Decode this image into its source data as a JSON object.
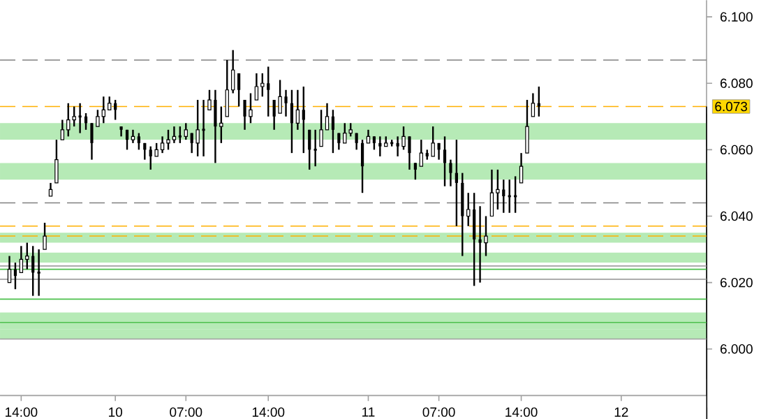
{
  "chart_data": {
    "type": "candlestick",
    "color": "#000000",
    "categories": [
      null,
      null,
      "14:00",
      null,
      null,
      null,
      null,
      null,
      null,
      null,
      null,
      null,
      null,
      null,
      null,
      null,
      null,
      null,
      "10",
      null,
      null,
      null,
      null,
      null,
      null,
      null,
      null,
      null,
      null,
      null,
      "07:00",
      null,
      null,
      null,
      null,
      null,
      null,
      null,
      null,
      null,
      null,
      null,
      null,
      null,
      "14:00",
      null,
      null,
      null,
      null,
      null,
      null,
      null,
      null,
      null,
      null,
      null,
      null,
      null,
      null,
      null,
      null,
      "11",
      null,
      null,
      null,
      null,
      null,
      null,
      null,
      null,
      null,
      null,
      null,
      "07:00",
      null,
      null,
      null,
      null,
      null,
      null,
      null,
      null,
      null,
      null,
      null,
      null,
      null,
      "14:00",
      null,
      null,
      null,
      null,
      null,
      null,
      null,
      null,
      null,
      null,
      null,
      null,
      null,
      null,
      null,
      null,
      "12",
      null,
      null,
      null,
      null,
      null,
      null,
      null,
      null,
      null,
      null,
      null,
      null,
      null,
      null
    ],
    "ohlc": [
      [
        6.02,
        6.028,
        6.02,
        6.024
      ],
      [
        6.024,
        6.026,
        6.018,
        6.022
      ],
      [
        6.023,
        6.031,
        6.023,
        6.027
      ],
      [
        6.027,
        6.032,
        6.024,
        6.028
      ],
      [
        6.028,
        6.031,
        6.016,
        6.023
      ],
      [
        6.023,
        6.03,
        6.016,
        6.023
      ],
      [
        6.03,
        6.038,
        6.03,
        6.034
      ],
      [
        6.046,
        6.05,
        6.046,
        6.048
      ],
      [
        6.05,
        6.063,
        6.05,
        6.057
      ],
      [
        6.063,
        6.069,
        6.063,
        6.066
      ],
      [
        6.066,
        6.074,
        6.064,
        6.069
      ],
      [
        6.069,
        6.073,
        6.067,
        6.07
      ],
      [
        6.07,
        6.074,
        6.065,
        6.07
      ],
      [
        6.07,
        6.071,
        6.066,
        6.068
      ],
      [
        6.068,
        6.068,
        6.057,
        6.062
      ],
      [
        6.067,
        6.072,
        6.067,
        6.07
      ],
      [
        6.07,
        6.076,
        6.068,
        6.072
      ],
      [
        6.072,
        6.076,
        6.072,
        6.074
      ],
      [
        6.074,
        6.075,
        6.069,
        6.072
      ],
      [
        6.067,
        6.067,
        6.064,
        6.066
      ],
      [
        6.066,
        6.066,
        6.06,
        6.063
      ],
      [
        6.063,
        6.066,
        6.062,
        6.064
      ],
      [
        6.064,
        6.065,
        6.06,
        6.062
      ],
      [
        6.062,
        6.062,
        6.057,
        6.06
      ],
      [
        6.06,
        6.061,
        6.054,
        6.058
      ],
      [
        6.058,
        6.062,
        6.058,
        6.06
      ],
      [
        6.06,
        6.064,
        6.059,
        6.062
      ],
      [
        6.062,
        6.066,
        6.06,
        6.063
      ],
      [
        6.063,
        6.067,
        6.062,
        6.064
      ],
      [
        6.064,
        6.067,
        6.062,
        6.064
      ],
      [
        6.064,
        6.068,
        6.063,
        6.066
      ],
      [
        6.065,
        6.065,
        6.059,
        6.062
      ],
      [
        6.062,
        6.075,
        6.058,
        6.066
      ],
      [
        6.066,
        6.075,
        6.058,
        6.066
      ],
      [
        6.072,
        6.078,
        6.072,
        6.075
      ],
      [
        6.075,
        6.078,
        6.056,
        6.067
      ],
      [
        6.067,
        6.073,
        6.062,
        6.068
      ],
      [
        6.07,
        6.087,
        6.07,
        6.078
      ],
      [
        6.078,
        6.09,
        6.077,
        6.084
      ],
      [
        6.083,
        6.083,
        6.073,
        6.078
      ],
      [
        6.075,
        6.075,
        6.066,
        6.07
      ],
      [
        6.07,
        6.077,
        6.068,
        6.072
      ],
      [
        6.075,
        6.083,
        6.075,
        6.079
      ],
      [
        6.079,
        6.083,
        6.076,
        6.08
      ],
      [
        6.08,
        6.085,
        6.07,
        6.078
      ],
      [
        6.075,
        6.075,
        6.066,
        6.07
      ],
      [
        6.071,
        6.081,
        6.071,
        6.076
      ],
      [
        6.076,
        6.078,
        6.07,
        6.074
      ],
      [
        6.074,
        6.078,
        6.059,
        6.068
      ],
      [
        6.068,
        6.078,
        6.066,
        6.072
      ],
      [
        6.072,
        6.079,
        6.059,
        6.069
      ],
      [
        6.066,
        6.066,
        6.054,
        6.06
      ],
      [
        6.06,
        6.066,
        6.055,
        6.06
      ],
      [
        6.061,
        6.072,
        6.061,
        6.066
      ],
      [
        6.066,
        6.074,
        6.066,
        6.07
      ],
      [
        6.07,
        6.072,
        6.059,
        6.066
      ],
      [
        6.065,
        6.065,
        6.06,
        6.062
      ],
      [
        6.062,
        6.068,
        6.062,
        6.065
      ],
      [
        6.065,
        6.068,
        6.064,
        6.066
      ],
      [
        6.065,
        6.065,
        6.06,
        6.062
      ],
      [
        6.062,
        6.063,
        6.047,
        6.055
      ],
      [
        6.062,
        6.066,
        6.062,
        6.064
      ],
      [
        6.064,
        6.064,
        6.06,
        6.062
      ],
      [
        6.062,
        6.064,
        6.058,
        6.061
      ],
      [
        6.061,
        6.064,
        6.061,
        6.062
      ],
      [
        6.062,
        6.063,
        6.061,
        6.062
      ],
      [
        6.062,
        6.064,
        6.058,
        6.061
      ],
      [
        6.061,
        6.067,
        6.06,
        6.064
      ],
      [
        6.064,
        6.064,
        6.054,
        6.059
      ],
      [
        6.056,
        6.056,
        6.051,
        6.054
      ],
      [
        6.055,
        6.063,
        6.055,
        6.059
      ],
      [
        6.059,
        6.06,
        6.057,
        6.058
      ],
      [
        6.058,
        6.067,
        6.058,
        6.062
      ],
      [
        6.062,
        6.062,
        6.057,
        6.06
      ],
      [
        6.06,
        6.064,
        6.049,
        6.056
      ],
      [
        6.056,
        6.057,
        6.049,
        6.053
      ],
      [
        6.053,
        6.063,
        6.037,
        6.05
      ],
      [
        6.05,
        6.053,
        6.028,
        6.04
      ],
      [
        6.04,
        6.047,
        6.037,
        6.042
      ],
      [
        6.042,
        6.047,
        6.019,
        6.033
      ],
      [
        6.033,
        6.043,
        6.02,
        6.032
      ],
      [
        6.032,
        6.04,
        6.028,
        6.034
      ],
      [
        6.04,
        6.054,
        6.04,
        6.047
      ],
      [
        6.047,
        6.054,
        6.042,
        6.048
      ],
      [
        6.048,
        6.051,
        6.041,
        6.046
      ],
      [
        6.046,
        6.051,
        6.041,
        6.046
      ],
      [
        6.046,
        6.052,
        6.041,
        6.046
      ],
      [
        6.05,
        6.059,
        6.05,
        6.055
      ],
      [
        6.059,
        6.075,
        6.059,
        6.067
      ],
      [
        6.07,
        6.077,
        6.07,
        6.074
      ],
      [
        6.074,
        6.079,
        6.07,
        6.073
      ],
      null,
      null,
      null,
      null,
      null,
      null,
      null,
      null,
      null,
      null,
      null,
      null,
      null,
      null,
      null,
      null,
      null,
      null,
      null,
      null,
      null,
      null,
      null,
      null,
      null,
      null,
      null,
      null
    ],
    "ylim": [
      5.986,
      6.105
    ],
    "yticks": [
      {
        "value": 6.0,
        "label": "6.000"
      },
      {
        "value": 6.02,
        "label": "6.020"
      },
      {
        "value": 6.04,
        "label": "6.040"
      },
      {
        "value": 6.06,
        "label": "6.060"
      },
      {
        "value": 6.08,
        "label": "6.080"
      },
      {
        "value": 6.1,
        "label": "6.100"
      }
    ],
    "bands": [
      {
        "axis": "y",
        "from": 6.051,
        "to": 6.056,
        "color": "#b6eab6"
      },
      {
        "axis": "y",
        "from": 6.032,
        "to": 6.035,
        "color": "#b6eab6"
      },
      {
        "axis": "y",
        "from": 6.063,
        "to": 6.068,
        "color": "#b6eab6"
      },
      {
        "axis": "y",
        "from": 6.026,
        "to": 6.029,
        "color": "#b6eab6"
      },
      {
        "axis": "y",
        "from": 6.003,
        "to": 6.006,
        "color": "#b6eab6"
      },
      {
        "axis": "y",
        "from": 6.006,
        "to": 6.011,
        "color": "#b6eab6"
      }
    ],
    "ref_lines": [
      {
        "axis": "y",
        "value": 6.087,
        "color": "#808080",
        "line_style": "dashed"
      },
      {
        "axis": "y",
        "value": 6.044,
        "color": "#808080",
        "line_style": "dashed"
      },
      {
        "axis": "y",
        "value": 6.073,
        "color": "#ffb000",
        "line_style": "dashed",
        "label": "6.073"
      },
      {
        "axis": "y",
        "value": 6.037,
        "color": "#ffb000",
        "line_style": "dashed"
      },
      {
        "axis": "y",
        "value": 6.034,
        "color": "#ffb000",
        "line_style": "dashed"
      },
      {
        "axis": "y",
        "value": 6.025,
        "color": "#a0a0a0",
        "line_style": "solid"
      },
      {
        "axis": "y",
        "value": 6.021,
        "color": "#a0a0a0",
        "line_style": "solid"
      },
      {
        "axis": "y",
        "value": 6.003,
        "color": "#a0a0a0",
        "line_style": "solid"
      },
      {
        "axis": "y",
        "value": 6.024,
        "color": "#4cc04c",
        "line_style": "solid"
      },
      {
        "axis": "y",
        "value": 6.015,
        "color": "#4cc04c",
        "line_style": "solid"
      },
      {
        "axis": "y",
        "value": 6.008,
        "color": "#4cc04c",
        "line_style": "solid"
      }
    ]
  }
}
